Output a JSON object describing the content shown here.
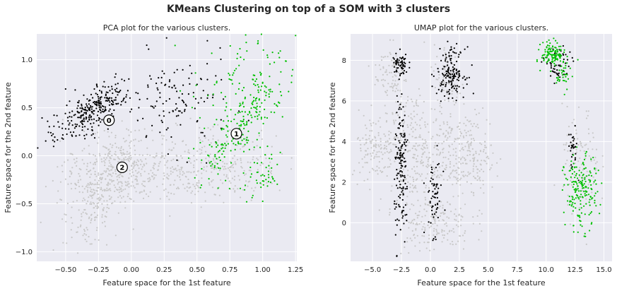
{
  "figure": {
    "suptitle": "KMeans Clustering on top of a SOM with 3 clusters"
  },
  "colors": {
    "background": "#eaeaf2",
    "grid": "#ffffff",
    "cluster_0": "#000000",
    "cluster_1": "#00c000",
    "cluster_2": "#c8c8c8",
    "text": "#262626"
  },
  "chart_data": [
    {
      "type": "scatter",
      "title": "PCA plot for the various clusters.",
      "xlabel": "Feature space for the 1st feature",
      "ylabel": "Feature space for the 2nd feature",
      "xlim": [
        -0.72,
        1.26
      ],
      "ylim": [
        -1.1,
        1.27
      ],
      "xticks": [
        -0.5,
        -0.25,
        0.0,
        0.25,
        0.5,
        0.75,
        1.0,
        1.25
      ],
      "xtick_labels": [
        "−0.50",
        "−0.25",
        "0.00",
        "0.25",
        "0.50",
        "0.75",
        "1.00",
        "1.25"
      ],
      "yticks": [
        -1.0,
        -0.5,
        0.0,
        0.5,
        1.0
      ],
      "ytick_labels": [
        "−1.0",
        "−0.5",
        "0.0",
        "0.5",
        "1.0"
      ],
      "grid": true,
      "legend": "none",
      "clusters": [
        {
          "label": "0",
          "color_key": "cluster_2",
          "density": 900,
          "regions": [
            {
              "center": [
                -0.15,
                -0.15
              ],
              "spread": [
                0.17,
                0.22
              ],
              "tilt": -0.55,
              "weight": 0.45
            },
            {
              "center": [
                -0.27,
                -0.55
              ],
              "spread": [
                0.08,
                0.2
              ],
              "tilt": -0.3,
              "weight": 0.15
            },
            {
              "center": [
                0.35,
                -0.2
              ],
              "spread": [
                0.3,
                0.15
              ],
              "tilt": 0.0,
              "weight": 0.25
            },
            {
              "center": [
                0.7,
                -0.05
              ],
              "spread": [
                0.22,
                0.18
              ],
              "tilt": -0.3,
              "weight": 0.15
            }
          ]
        },
        {
          "label": "1",
          "color_key": "cluster_0",
          "density": 420,
          "regions": [
            {
              "center": [
                -0.3,
                0.47
              ],
              "spread": [
                0.08,
                0.18
              ],
              "tilt": -0.75,
              "weight": 0.7
            },
            {
              "center": [
                0.35,
                0.55
              ],
              "spread": [
                0.2,
                0.25
              ],
              "tilt": 0.0,
              "weight": 0.3
            }
          ]
        },
        {
          "label": "2",
          "color_key": "cluster_1",
          "density": 330,
          "regions": [
            {
              "center": [
                0.82,
                0.3
              ],
              "spread": [
                0.08,
                0.3
              ],
              "tilt": -0.45,
              "weight": 0.55
            },
            {
              "center": [
                0.85,
                0.75
              ],
              "spread": [
                0.2,
                0.25
              ],
              "tilt": 0.0,
              "weight": 0.3
            },
            {
              "center": [
                1.0,
                -0.2
              ],
              "spread": [
                0.06,
                0.14
              ],
              "tilt": -0.3,
              "weight": 0.15
            }
          ]
        }
      ],
      "centroids": [
        {
          "label": "0",
          "x": -0.17,
          "y": 0.37
        },
        {
          "label": "1",
          "x": 0.8,
          "y": 0.23
        },
        {
          "label": "2",
          "x": -0.07,
          "y": -0.12
        }
      ]
    },
    {
      "type": "scatter",
      "title": "UMAP plot for the various clusters.",
      "xlabel": "Feature space for the 1st feature",
      "ylabel": "Feature space for the 2nd feature",
      "xlim": [
        -6.9,
        15.7
      ],
      "ylim": [
        -1.9,
        9.3
      ],
      "xticks": [
        -5.0,
        -2.5,
        0.0,
        2.5,
        5.0,
        7.5,
        10.0,
        12.5,
        15.0
      ],
      "xtick_labels": [
        "−5.0",
        "−2.5",
        "0.0",
        "2.5",
        "5.0",
        "7.5",
        "10.0",
        "12.5",
        "15.0"
      ],
      "yticks": [
        0,
        2,
        4,
        6,
        8
      ],
      "ytick_labels": [
        "0",
        "2",
        "4",
        "6",
        "8"
      ],
      "grid": true,
      "legend": "none",
      "clusters": [
        {
          "label": "0",
          "color_key": "cluster_2",
          "density": 1100,
          "regions": [
            {
              "center": [
                -3.5,
                7.3
              ],
              "spread": [
                0.7,
                0.8
              ],
              "tilt": 0.0,
              "weight": 0.07
            },
            {
              "center": [
                1.5,
                7.0
              ],
              "spread": [
                0.6,
                0.9
              ],
              "tilt": 0.0,
              "weight": 0.07
            },
            {
              "center": [
                -4.5,
                3.8
              ],
              "spread": [
                1.2,
                0.8
              ],
              "tilt": 0.0,
              "weight": 0.15
            },
            {
              "center": [
                -1.5,
                3.3
              ],
              "spread": [
                1.0,
                1.6
              ],
              "tilt": 0.0,
              "weight": 0.18
            },
            {
              "center": [
                1.5,
                3.5
              ],
              "spread": [
                1.3,
                1.2
              ],
              "tilt": 0.0,
              "weight": 0.18
            },
            {
              "center": [
                4.0,
                3.4
              ],
              "spread": [
                0.8,
                1.0
              ],
              "tilt": 0.0,
              "weight": 0.1
            },
            {
              "center": [
                0.3,
                0.0
              ],
              "spread": [
                1.6,
                0.7
              ],
              "tilt": 0.0,
              "weight": 0.15
            },
            {
              "center": [
                13.0,
                3.0
              ],
              "spread": [
                0.8,
                1.3
              ],
              "tilt": 0.0,
              "weight": 0.1
            }
          ]
        },
        {
          "label": "1",
          "color_key": "cluster_0",
          "density": 520,
          "regions": [
            {
              "center": [
                -2.5,
                2.6
              ],
              "spread": [
                0.3,
                1.8
              ],
              "tilt": 0.0,
              "weight": 0.3
            },
            {
              "center": [
                -2.6,
                7.8
              ],
              "spread": [
                0.35,
                0.25
              ],
              "tilt": 0.0,
              "weight": 0.12
            },
            {
              "center": [
                1.8,
                7.4
              ],
              "spread": [
                0.6,
                0.6
              ],
              "tilt": 0.0,
              "weight": 0.3
            },
            {
              "center": [
                0.3,
                1.3
              ],
              "spread": [
                0.35,
                0.9
              ],
              "tilt": 0.0,
              "weight": 0.12
            },
            {
              "center": [
                11.0,
                7.7
              ],
              "spread": [
                0.6,
                0.5
              ],
              "tilt": 0.0,
              "weight": 0.1
            },
            {
              "center": [
                12.3,
                3.6
              ],
              "spread": [
                0.2,
                0.5
              ],
              "tilt": 0.0,
              "weight": 0.06
            }
          ]
        },
        {
          "label": "2",
          "color_key": "cluster_1",
          "density": 340,
          "regions": [
            {
              "center": [
                10.6,
                8.3
              ],
              "spread": [
                0.5,
                0.3
              ],
              "tilt": 0.0,
              "weight": 0.35
            },
            {
              "center": [
                11.5,
                7.3
              ],
              "spread": [
                0.3,
                0.4
              ],
              "tilt": 0.0,
              "weight": 0.1
            },
            {
              "center": [
                13.0,
                1.5
              ],
              "spread": [
                0.7,
                0.9
              ],
              "tilt": 0.0,
              "weight": 0.55
            }
          ]
        }
      ]
    }
  ]
}
